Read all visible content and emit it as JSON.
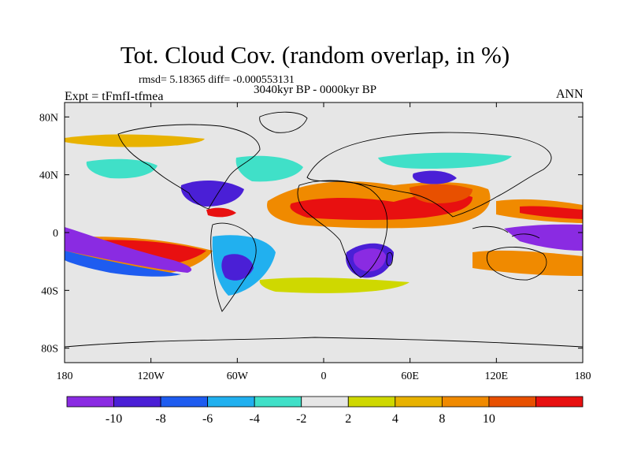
{
  "chart_data": {
    "type": "heatmap",
    "title": "Tot. Cloud Cov. (random overlap, in %)",
    "stats_line": "rmsd= 5.18365 diff= -0.000553131",
    "period_line": "3040kyr BP - 0000kyr BP",
    "experiment_label": "Expt = tFmfI-tfmea",
    "season_label": "ANN",
    "x_ticks": [
      "180",
      "120W",
      "60W",
      "0",
      "60E",
      "120E",
      "180"
    ],
    "y_ticks": [
      "80N",
      "40N",
      "0",
      "40S",
      "80S"
    ],
    "xlim": [
      -180,
      180
    ],
    "ylim": [
      -90,
      90
    ],
    "colorbar": {
      "tick_labels": [
        "-10",
        "-8",
        "-6",
        "-4",
        "-2",
        "2",
        "4",
        "8",
        "10"
      ],
      "colors": [
        "#8a2be2",
        "#4a1fd6",
        "#1e5cf0",
        "#21b0ef",
        "#40e0c8",
        "#e6e6e6",
        "#cfd800",
        "#e8b200",
        "#f08a00",
        "#e85000",
        "#e81010"
      ]
    },
    "map_background_color": "#e6e6e6"
  }
}
